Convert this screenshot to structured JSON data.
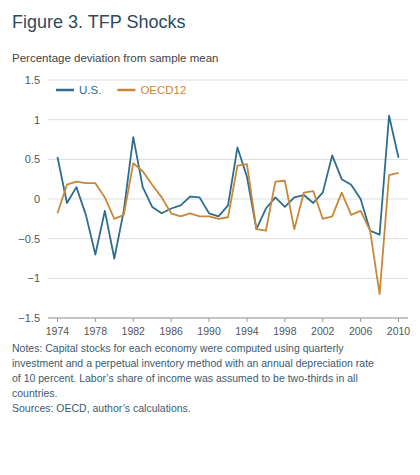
{
  "chart_data": {
    "type": "line",
    "title": "Figure 3. TFP Shocks",
    "ylabel": "Percentage deviation from sample mean",
    "notes": [
      "Notes: Capital stocks for each economy were computed using quarterly",
      "investment and a perpetual inventory method with an annual depreciation rate",
      "of 10 percent. Labor’s share of income was assumed to be two-thirds in all",
      "countries.",
      "Sources: OECD, author’s calculations."
    ],
    "x": [
      1974,
      1975,
      1976,
      1977,
      1978,
      1979,
      1980,
      1981,
      1982,
      1983,
      1984,
      1985,
      1986,
      1987,
      1988,
      1989,
      1990,
      1991,
      1992,
      1993,
      1994,
      1995,
      1996,
      1997,
      1998,
      1999,
      2000,
      2001,
      2002,
      2003,
      2004,
      2005,
      2006,
      2007,
      2008,
      2009,
      2010
    ],
    "series": [
      {
        "name": "U.S.",
        "color": "#2e6d8e",
        "values": [
          0.53,
          -0.05,
          0.15,
          -0.2,
          -0.7,
          -0.15,
          -0.75,
          -0.15,
          0.78,
          0.15,
          -0.1,
          -0.18,
          -0.12,
          -0.08,
          0.03,
          0.02,
          -0.18,
          -0.22,
          -0.08,
          0.65,
          0.28,
          -0.38,
          -0.12,
          0.02,
          -0.1,
          0.02,
          0.05,
          -0.05,
          0.08,
          0.55,
          0.25,
          0.18,
          0.0,
          -0.4,
          -0.45,
          1.05,
          0.52
        ]
      },
      {
        "name": "OECD12",
        "color": "#c8883a",
        "values": [
          -0.18,
          0.18,
          0.22,
          0.2,
          0.2,
          0.02,
          -0.25,
          -0.2,
          0.45,
          0.35,
          0.18,
          0.02,
          -0.18,
          -0.22,
          -0.18,
          -0.22,
          -0.22,
          -0.25,
          -0.23,
          0.42,
          0.44,
          -0.38,
          -0.4,
          0.22,
          0.23,
          -0.38,
          0.08,
          0.1,
          -0.25,
          -0.22,
          0.08,
          -0.2,
          -0.15,
          -0.4,
          -1.2,
          0.3,
          0.33
        ]
      }
    ],
    "xlim": [
      1973,
      2011
    ],
    "xticks": [
      1974,
      1978,
      1982,
      1986,
      1990,
      1994,
      1998,
      2002,
      2006,
      2010
    ],
    "ylim": [
      -1.5,
      1.5
    ],
    "yticks": [
      {
        "value": -1.5,
        "label": "−1.5"
      },
      {
        "value": -1.0,
        "label": "−1"
      },
      {
        "value": -0.5,
        "label": "−0.5"
      },
      0,
      0.5,
      1,
      1.5
    ],
    "grid": true,
    "legend": "top-left"
  }
}
